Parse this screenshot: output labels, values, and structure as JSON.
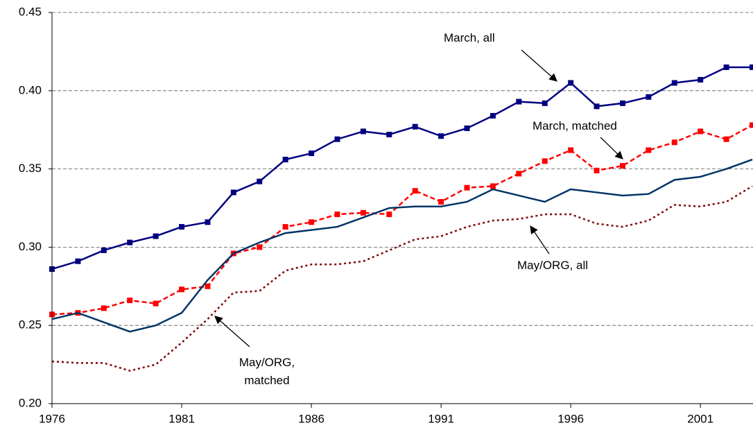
{
  "chart_data": {
    "type": "line",
    "x": [
      1976,
      1977,
      1978,
      1979,
      1980,
      1981,
      1982,
      1983,
      1984,
      1985,
      1986,
      1987,
      1988,
      1989,
      1990,
      1991,
      1992,
      1993,
      1994,
      1995,
      1996,
      1997,
      1998,
      1999,
      2000,
      2001,
      2002,
      2003
    ],
    "xlim": [
      1976,
      2003
    ],
    "xticks": [
      1976,
      1981,
      1986,
      1991,
      1996,
      2001
    ],
    "ylim": [
      0.2,
      0.45
    ],
    "yticks": [
      {
        "value": 0.2,
        "label": "0.20"
      },
      {
        "value": 0.25,
        "label": "0.25"
      },
      {
        "value": 0.3,
        "label": "0.30"
      },
      {
        "value": 0.35,
        "label": "0.35"
      },
      {
        "value": 0.4,
        "label": "0.40"
      },
      {
        "value": 0.45,
        "label": "0.45"
      }
    ],
    "grid": true,
    "series": [
      {
        "name": "March, all",
        "color": "#000080",
        "dash": "solid",
        "marker": "square",
        "values": [
          0.286,
          0.291,
          0.298,
          0.303,
          0.307,
          0.313,
          0.316,
          0.335,
          0.342,
          0.356,
          0.36,
          0.369,
          0.374,
          0.372,
          0.377,
          0.371,
          0.376,
          0.384,
          0.393,
          0.392,
          0.405,
          0.39,
          0.392,
          0.396,
          0.405,
          0.407,
          0.415,
          0.415
        ]
      },
      {
        "name": "March, matched",
        "color": "#ff0000",
        "dash": "dashed",
        "marker": "square",
        "values": [
          0.257,
          0.258,
          0.261,
          0.266,
          0.264,
          0.273,
          0.275,
          0.296,
          0.3,
          0.313,
          0.316,
          0.321,
          0.322,
          0.321,
          0.336,
          0.329,
          0.338,
          0.339,
          0.347,
          0.355,
          0.362,
          0.349,
          0.352,
          0.362,
          0.367,
          0.374,
          0.369,
          0.378
        ]
      },
      {
        "name": "May/ORG, all",
        "color": "#003366",
        "dash": "solid",
        "marker": null,
        "values": [
          0.254,
          0.258,
          0.252,
          0.246,
          0.25,
          0.258,
          0.279,
          0.296,
          0.303,
          0.309,
          0.311,
          0.313,
          0.319,
          0.325,
          0.326,
          0.326,
          0.329,
          0.337,
          0.333,
          0.329,
          0.337,
          0.335,
          0.333,
          0.334,
          0.343,
          0.345,
          0.35,
          0.356
        ]
      },
      {
        "name": "May/ORG, matched",
        "color": "#800000",
        "dash": "dotted",
        "marker": null,
        "values": [
          0.227,
          0.226,
          0.226,
          0.221,
          0.225,
          0.239,
          0.254,
          0.271,
          0.272,
          0.285,
          0.289,
          0.289,
          0.291,
          0.298,
          0.305,
          0.307,
          0.313,
          0.317,
          0.318,
          0.321,
          0.321,
          0.315,
          0.313,
          0.317,
          0.327,
          0.326,
          0.329,
          0.339
        ]
      }
    ]
  }
}
